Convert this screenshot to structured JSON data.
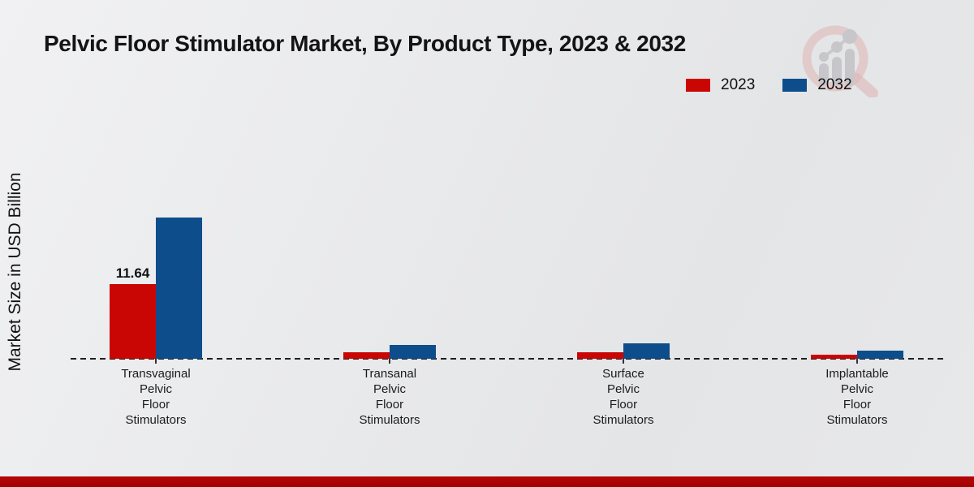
{
  "title": "Pelvic Floor Stimulator Market, By Product Type, 2023 & 2032",
  "y_axis_label": "Market Size in USD Billion",
  "legend": [
    {
      "label": "2023",
      "color": "#c90604"
    },
    {
      "label": "2032",
      "color": "#0d4d8c"
    }
  ],
  "footer": {
    "band_color": "#b80404"
  },
  "logo": {
    "name": "market-research-magnifier-logo"
  },
  "chart_data": {
    "type": "bar",
    "title": "Pelvic Floor Stimulator Market, By Product Type, 2023 & 2032",
    "xlabel": "",
    "ylabel": "Market Size in USD Billion",
    "legend_position": "top-right",
    "grid": false,
    "baseline_style": "dashed",
    "categories": [
      "Transvaginal Pelvic Floor Stimulators",
      "Transanal Pelvic Floor Stimulators",
      "Surface Pelvic Floor Stimulators",
      "Implantable Pelvic Floor Stimulators"
    ],
    "series": [
      {
        "name": "2023",
        "color": "#c90604",
        "values": [
          11.64,
          0.95,
          1.0,
          0.6
        ]
      },
      {
        "name": "2032",
        "color": "#0d4d8c",
        "values": [
          22.0,
          2.2,
          2.4,
          1.25
        ]
      }
    ],
    "annotations": [
      {
        "series": "2023",
        "category_index": 0,
        "text": "11.64"
      }
    ],
    "ylim": [
      0,
      24
    ]
  }
}
